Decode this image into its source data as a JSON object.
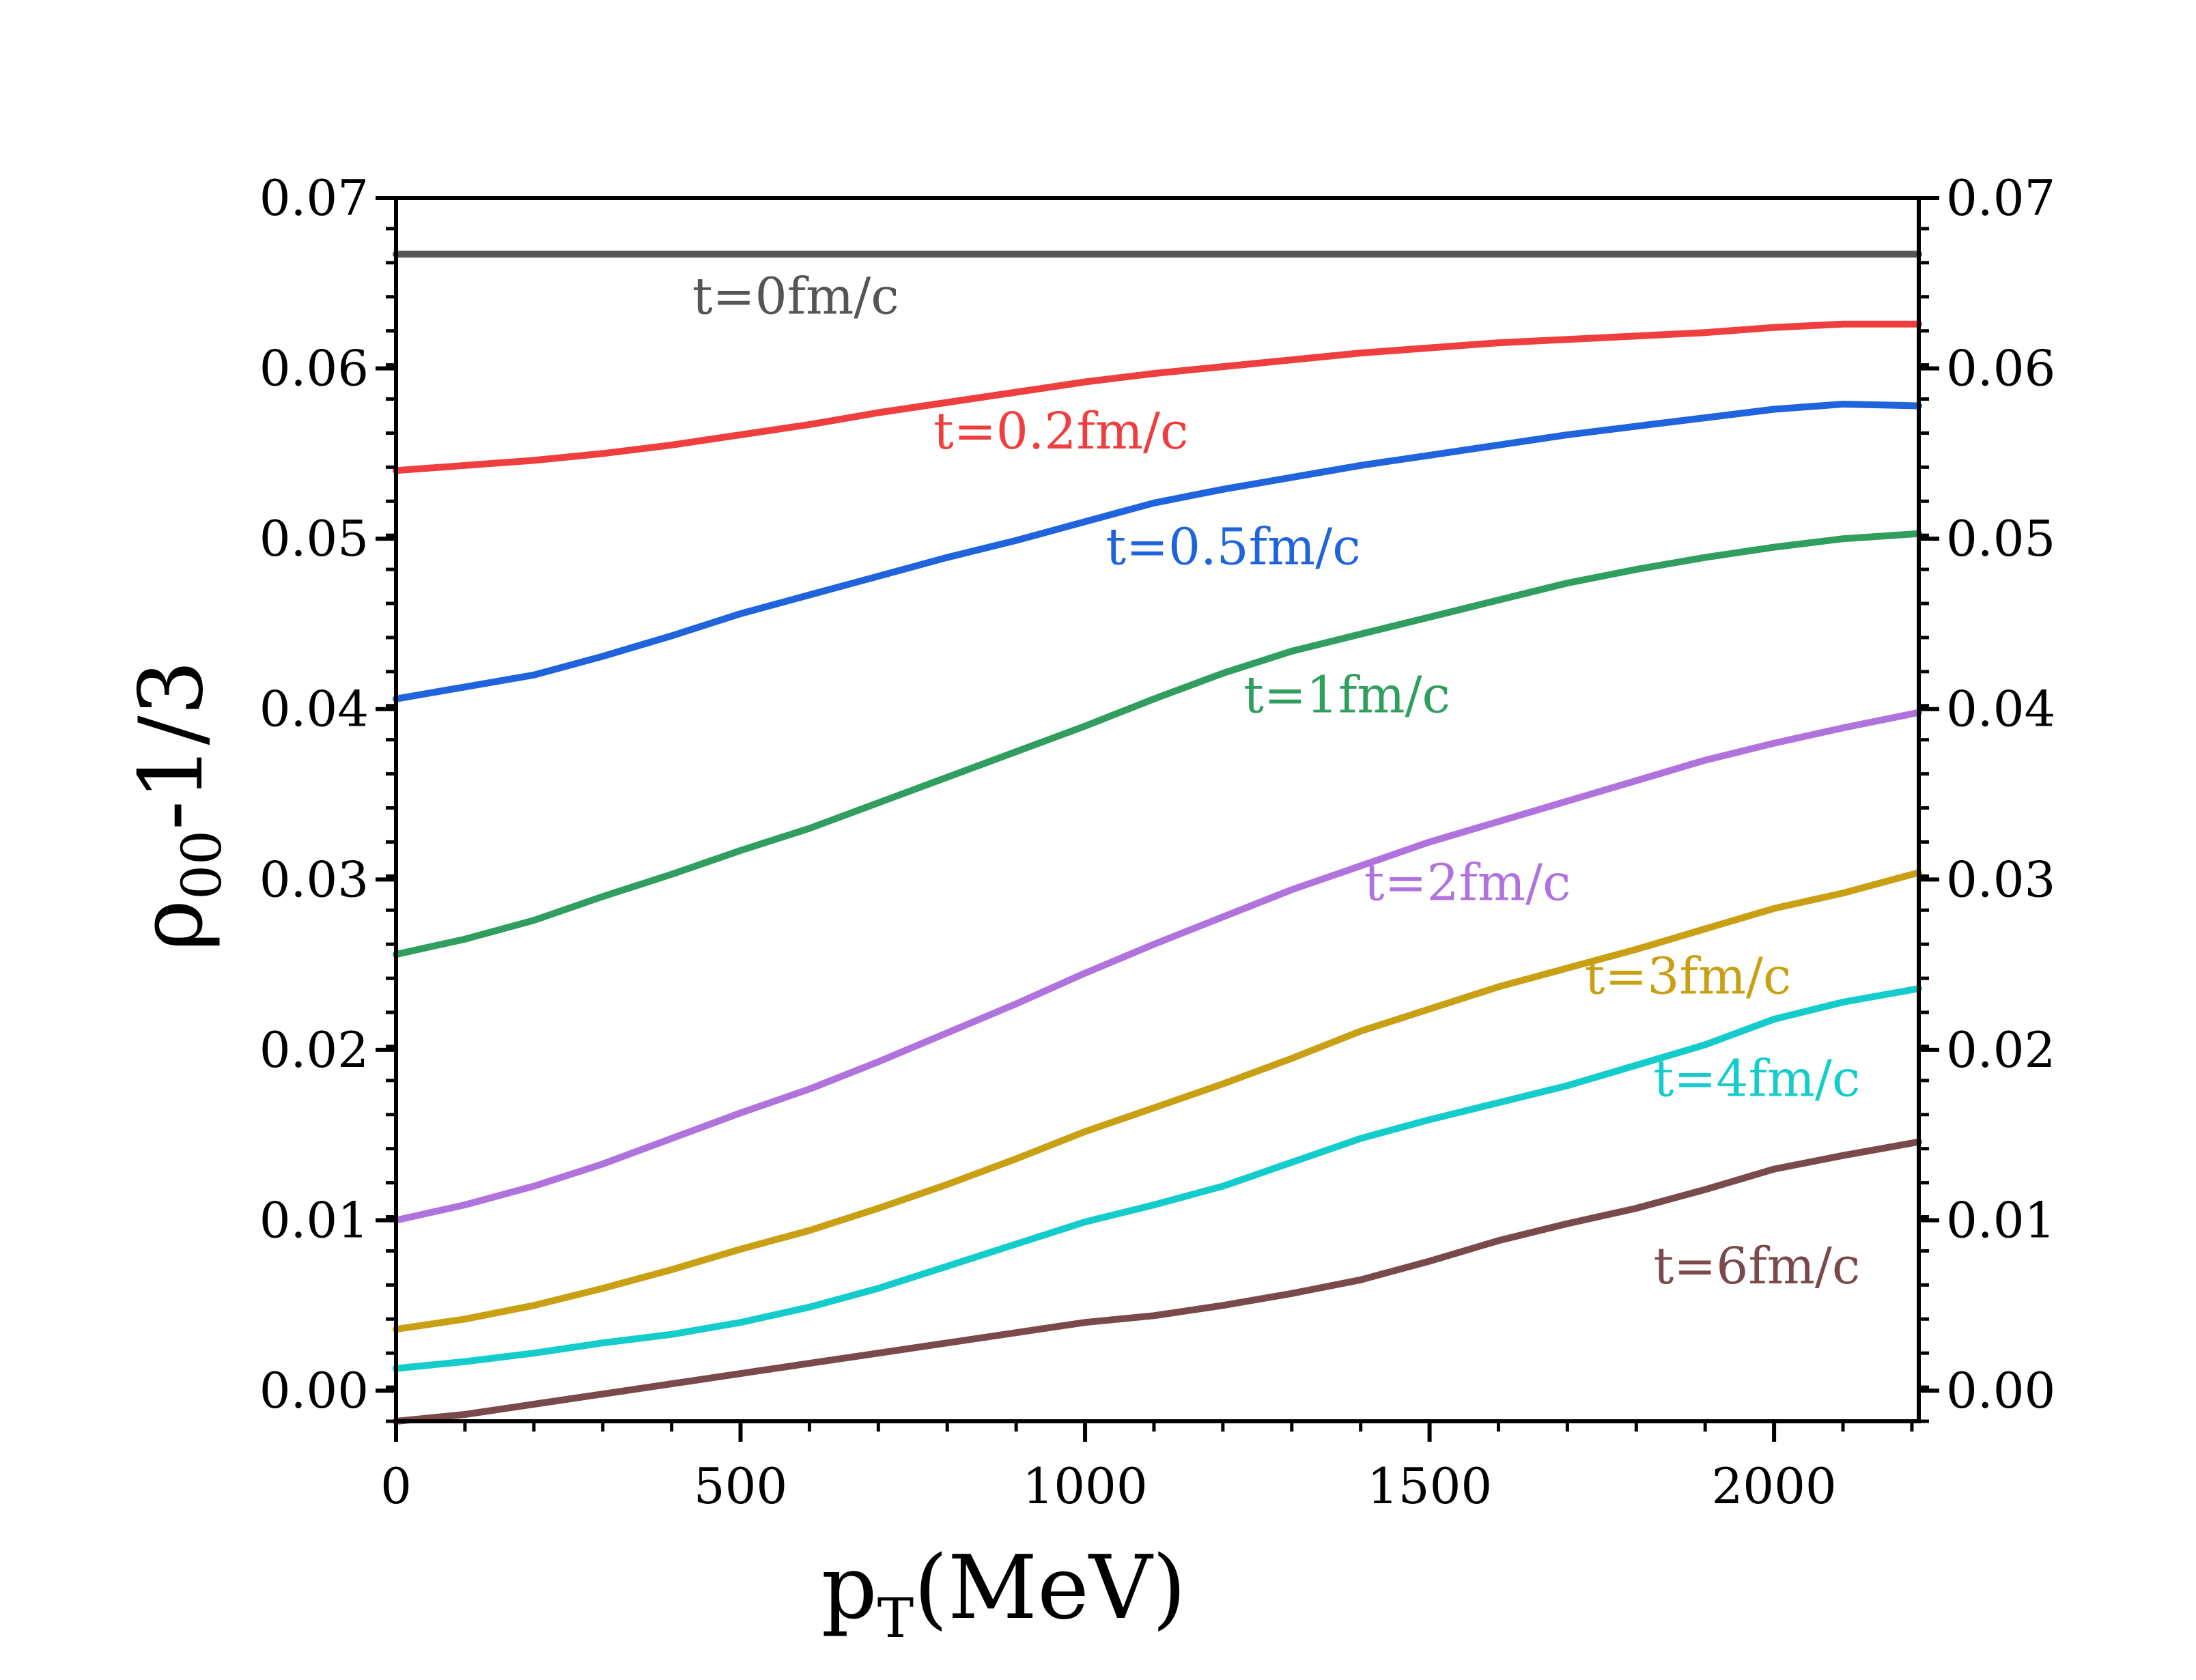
{
  "chart_data": {
    "type": "line",
    "title": "",
    "xlabel": {
      "main": "p",
      "sub": "T",
      "suffix": "(MeV)"
    },
    "ylabel": {
      "main": "ρ",
      "sub": "00",
      "suffix": "-1/3"
    },
    "xlim": [
      0,
      2210
    ],
    "ylim": [
      -0.0018,
      0.07
    ],
    "x_ticks": [
      {
        "value": 0,
        "label": "0"
      },
      {
        "value": 500,
        "label": "500"
      },
      {
        "value": 1000,
        "label": "1000"
      },
      {
        "value": 1500,
        "label": "1500"
      },
      {
        "value": 2000,
        "label": "2000"
      }
    ],
    "y_ticks": [
      {
        "value": 0.0,
        "label": "0.00"
      },
      {
        "value": 0.01,
        "label": "0.01"
      },
      {
        "value": 0.02,
        "label": "0.02"
      },
      {
        "value": 0.03,
        "label": "0.03"
      },
      {
        "value": 0.04,
        "label": "0.04"
      },
      {
        "value": 0.05,
        "label": "0.05"
      },
      {
        "value": 0.06,
        "label": "0.06"
      },
      {
        "value": 0.07,
        "label": "0.07"
      }
    ],
    "x": [
      0,
      100,
      200,
      300,
      400,
      500,
      600,
      700,
      800,
      900,
      1000,
      1100,
      1200,
      1300,
      1400,
      1500,
      1600,
      1700,
      1800,
      1900,
      2000,
      2100,
      2210
    ],
    "series": [
      {
        "name": "t=0fm/c",
        "color": "#555555",
        "label_at": [
          430,
          0.0632
        ],
        "values": [
          0.0667,
          0.0667,
          0.0667,
          0.0667,
          0.0667,
          0.0667,
          0.0667,
          0.0667,
          0.0667,
          0.0667,
          0.0667,
          0.0667,
          0.0667,
          0.0667,
          0.0667,
          0.0667,
          0.0667,
          0.0667,
          0.0667,
          0.0667,
          0.0667,
          0.0667,
          0.0667
        ]
      },
      {
        "name": "t=0.2fm/c",
        "color": "#ef3e3e",
        "label_at": [
          780,
          0.0553
        ],
        "values": [
          0.054,
          0.0543,
          0.0546,
          0.055,
          0.0555,
          0.0561,
          0.0567,
          0.0574,
          0.058,
          0.0586,
          0.0592,
          0.0597,
          0.0601,
          0.0605,
          0.0609,
          0.0612,
          0.0615,
          0.0617,
          0.0619,
          0.0621,
          0.0624,
          0.0626,
          0.0626
        ]
      },
      {
        "name": "t=0.5fm/c",
        "color": "#1f64dc",
        "label_at": [
          1030,
          0.0485
        ],
        "values": [
          0.0406,
          0.0413,
          0.042,
          0.0431,
          0.0443,
          0.0456,
          0.0467,
          0.0478,
          0.0489,
          0.0499,
          0.051,
          0.0521,
          0.0529,
          0.0536,
          0.0543,
          0.0549,
          0.0555,
          0.0561,
          0.0566,
          0.0571,
          0.0576,
          0.0579,
          0.0578
        ]
      },
      {
        "name": "t=1fm/c",
        "color": "#2f9e5e",
        "label_at": [
          1230,
          0.0398
        ],
        "values": [
          0.0256,
          0.0265,
          0.0276,
          0.029,
          0.0303,
          0.0317,
          0.033,
          0.0345,
          0.036,
          0.0375,
          0.039,
          0.0406,
          0.0421,
          0.0434,
          0.0444,
          0.0454,
          0.0464,
          0.0474,
          0.0482,
          0.0489,
          0.0495,
          0.05,
          0.0503
        ]
      },
      {
        "name": "t=2fm/c",
        "color": "#b073dd",
        "label_at": [
          1405,
          0.0288
        ],
        "values": [
          0.01,
          0.0109,
          0.012,
          0.0133,
          0.0148,
          0.0163,
          0.0177,
          0.0193,
          0.021,
          0.0227,
          0.0245,
          0.0262,
          0.0278,
          0.0294,
          0.0308,
          0.0322,
          0.0334,
          0.0346,
          0.0358,
          0.037,
          0.038,
          0.0389,
          0.0398
        ]
      },
      {
        "name": "t=3fm/c",
        "color": "#c9a013",
        "label_at": [
          1725,
          0.0233
        ],
        "values": [
          0.0036,
          0.0042,
          0.005,
          0.006,
          0.0071,
          0.0083,
          0.0094,
          0.0107,
          0.0121,
          0.0136,
          0.0152,
          0.0166,
          0.018,
          0.0195,
          0.0211,
          0.0224,
          0.0237,
          0.0248,
          0.0259,
          0.0271,
          0.0283,
          0.0292,
          0.0304
        ]
      },
      {
        "name": "t=4fm/c",
        "color": "#14cccc",
        "label_at": [
          1825,
          0.0173
        ],
        "values": [
          0.0013,
          0.0017,
          0.0022,
          0.0028,
          0.0033,
          0.004,
          0.0049,
          0.006,
          0.0073,
          0.0086,
          0.0099,
          0.0109,
          0.012,
          0.0134,
          0.0148,
          0.0159,
          0.0169,
          0.0179,
          0.0191,
          0.0203,
          0.0218,
          0.0228,
          0.0236
        ]
      },
      {
        "name": "t=6fm/c",
        "color": "#7a4a4a",
        "label_at": [
          1825,
          0.0063
        ],
        "values": [
          -0.0018,
          -0.0014,
          -0.0008,
          -0.0002,
          0.0004,
          0.001,
          0.0016,
          0.0022,
          0.0028,
          0.0034,
          0.004,
          0.0044,
          0.005,
          0.0057,
          0.0065,
          0.0076,
          0.0088,
          0.0098,
          0.0107,
          0.0118,
          0.013,
          0.0138,
          0.0146
        ]
      }
    ]
  }
}
